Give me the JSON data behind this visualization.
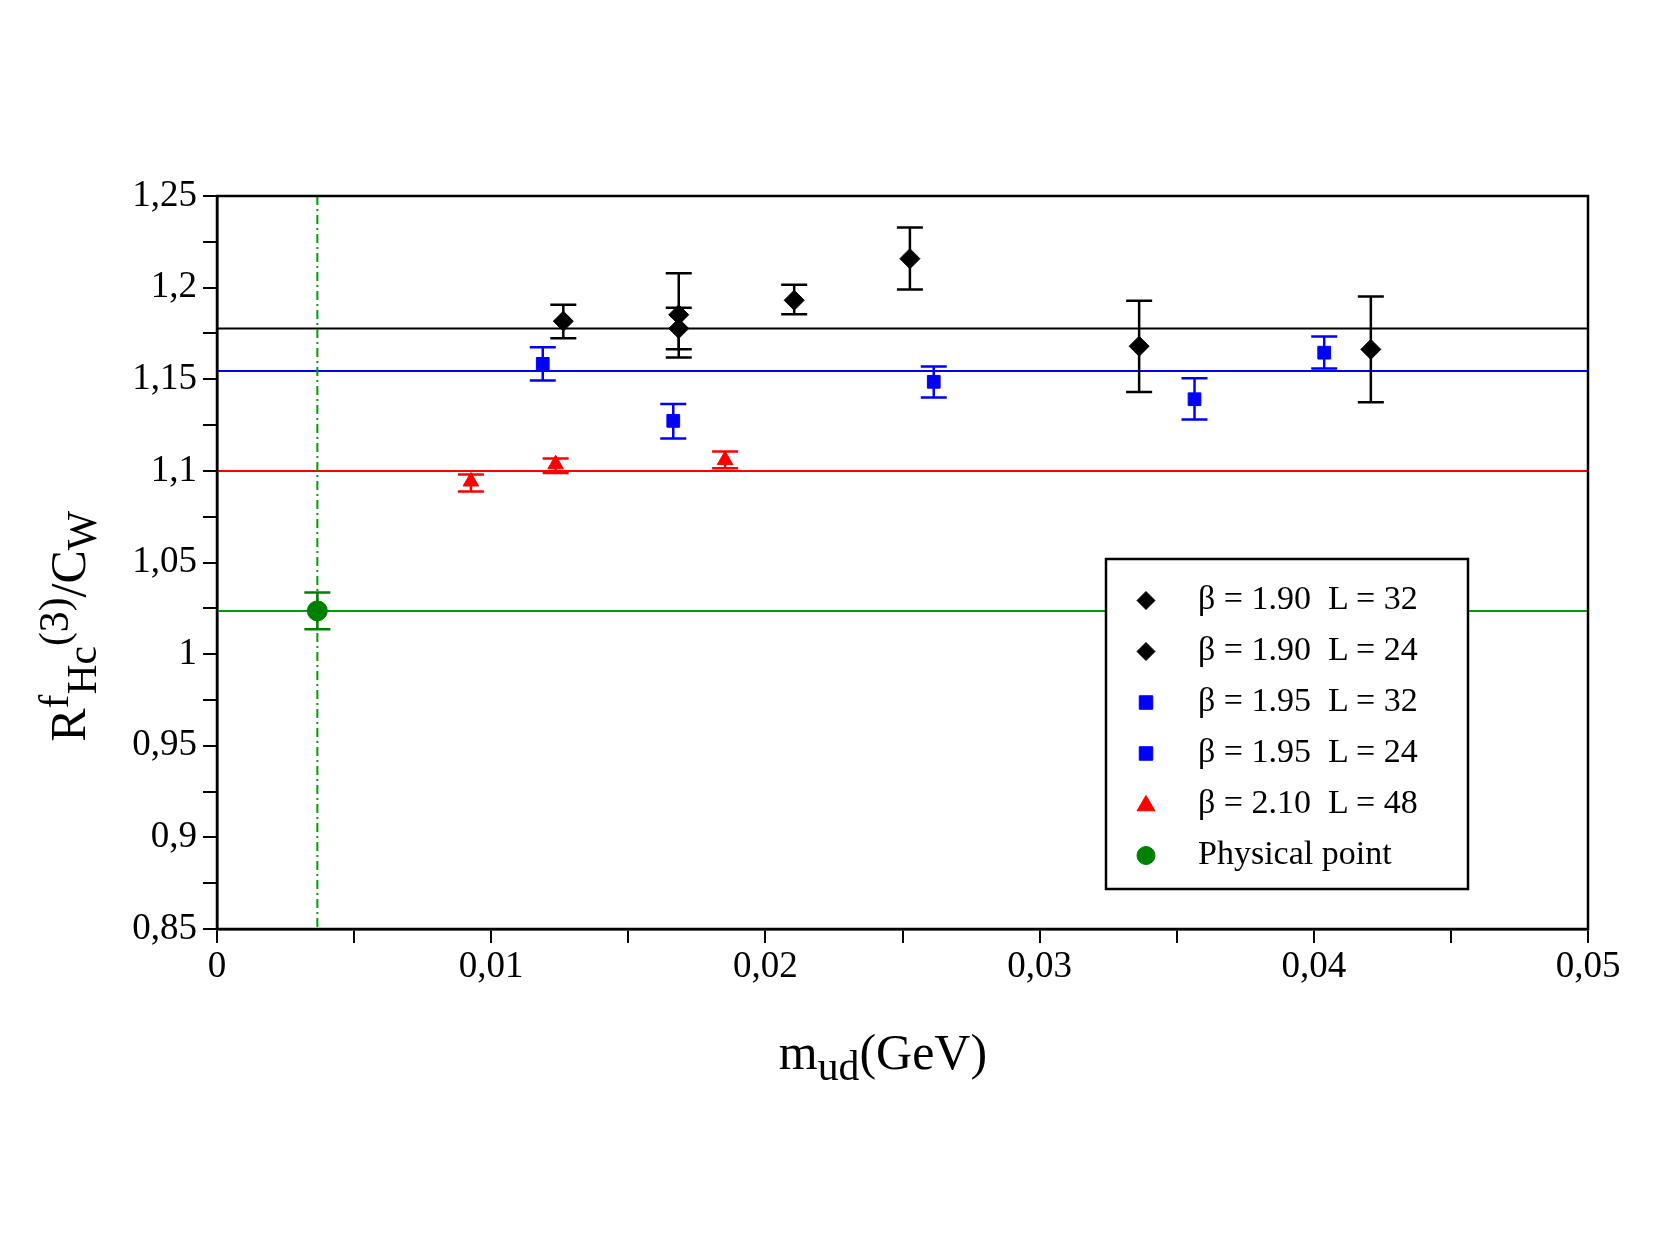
{
  "chart_data": {
    "type": "scatter",
    "xlabel": "m$_{ud}$(GeV)",
    "ylabel": "R$^{f}$$_{Hc}$$^{(3)}$/C$_{W}$",
    "xlim": [
      0,
      0.05
    ],
    "ylim": [
      0.85,
      1.25
    ],
    "xticks": [
      0,
      {
        "value": 0.005,
        "label": null
      },
      {
        "value": 0.01,
        "label": "0,01"
      },
      {
        "value": 0.015,
        "label": null
      },
      {
        "value": 0.02,
        "label": "0,02"
      },
      {
        "value": 0.025,
        "label": null
      },
      {
        "value": 0.03,
        "label": "0,03"
      },
      {
        "value": 0.035,
        "label": null
      },
      {
        "value": 0.04,
        "label": "0,04"
      },
      {
        "value": 0.045,
        "label": null
      },
      {
        "value": 0.05,
        "label": "0,05"
      }
    ],
    "yticks": [
      {
        "value": 0.85,
        "label": "0,85"
      },
      {
        "value": 0.875,
        "label": null
      },
      {
        "value": 0.9,
        "label": "0,9"
      },
      {
        "value": 0.925,
        "label": null
      },
      {
        "value": 0.95,
        "label": "0,95"
      },
      {
        "value": 0.975,
        "label": null
      },
      1,
      {
        "value": 1.025,
        "label": null
      },
      {
        "value": 1.05,
        "label": "1,05"
      },
      {
        "value": 1.075,
        "label": null
      },
      {
        "value": 1.1,
        "label": "1,1"
      },
      {
        "value": 1.125,
        "label": null
      },
      {
        "value": 1.15,
        "label": "1,15"
      },
      {
        "value": 1.175,
        "label": null
      },
      {
        "value": 1.2,
        "label": "1,2"
      },
      {
        "value": 1.225,
        "label": null
      },
      {
        "value": 1.25,
        "label": "1,25"
      }
    ],
    "grid": false,
    "legend": "bottom right",
    "series": [
      {
        "name": "β = 1.90  L = 32",
        "color": "#000000",
        "marker": "diamond",
        "x": [
          0.01263,
          0.01684,
          0.02105
        ],
        "values": [
          1.1817,
          1.1777,
          1.1931
        ],
        "errors": [
          [
            1.1724,
            1.1906
          ],
          [
            1.1619,
            1.189
          ],
          [
            1.1855,
            1.2016
          ]
        ]
      },
      {
        "name": "β = 1.90  L = 24",
        "color": "#000000",
        "marker": "diamond",
        "x": [
          0.01684,
          0.02527,
          0.03363,
          0.04208
        ],
        "values": [
          1.1852,
          1.2158,
          1.168,
          1.1663
        ],
        "errors": [
          [
            1.1664,
            1.2079
          ],
          [
            1.199,
            1.2328
          ],
          [
            1.143,
            1.1929
          ],
          [
            1.1374,
            1.1951
          ]
        ]
      },
      {
        "name": "β = 1.95  L = 32",
        "color": "#0000ff",
        "marker": "square",
        "x": [
          0.01188,
          0.01664,
          0.02614,
          0.03565
        ],
        "values": [
          1.1584,
          1.1273,
          1.1486,
          1.1391
        ],
        "errors": [
          [
            1.1493,
            1.1675
          ],
          [
            1.1176,
            1.1365
          ],
          [
            1.14,
            1.157
          ],
          [
            1.1281,
            1.1505
          ]
        ]
      },
      {
        "name": "β = 1.95  L = 24",
        "color": "#0000ff",
        "marker": "square",
        "x": [
          0.04038
        ],
        "values": [
          1.1645
        ],
        "errors": [
          [
            1.1558,
            1.1733
          ]
        ]
      },
      {
        "name": "β = 2.10  L = 48",
        "color": "#ff0000",
        "marker": "triangle",
        "x": [
          0.00926,
          0.01235,
          0.01853
        ],
        "values": [
          1.0942,
          1.1036,
          1.1059
        ],
        "errors": [
          [
            1.0887,
            1.098
          ],
          [
            1.0989,
            1.1068
          ],
          [
            1.1015,
            1.1106
          ]
        ]
      },
      {
        "name": "Physical point",
        "color": "#008000",
        "marker": "circle",
        "x": [
          0.00366
        ],
        "values": [
          1.0236
        ],
        "errors": [
          [
            1.0136,
            1.0336
          ]
        ]
      }
    ],
    "ref_lines": [
      {
        "axis": "y",
        "value": 1.1777,
        "color": "#000000"
      },
      {
        "axis": "y",
        "value": 1.1545,
        "color": "#0000ff"
      },
      {
        "axis": "y",
        "value": 1.1,
        "color": "#ff0000"
      },
      {
        "axis": "y",
        "value": 1.0236,
        "color": "#00a000"
      },
      {
        "axis": "x",
        "value": 0.00366,
        "color": "#00a000",
        "line_style": "dashed"
      }
    ]
  }
}
